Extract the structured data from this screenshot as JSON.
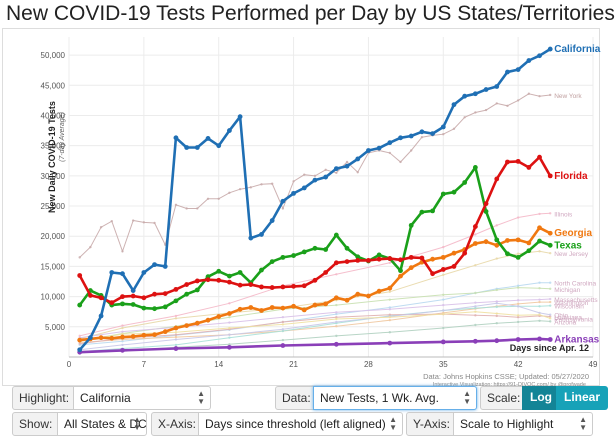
{
  "page": {
    "title": "New COVID-19 Tests Performed per Day by US States/Territories"
  },
  "source": {
    "line1": "Data: Johns Hopkins CSSE; Updated: 05/27/2020",
    "line2": "Interactive Visualization: https://91-DIVOC.com/ by @profwade_"
  },
  "controls": {
    "highlight_label": "Highlight:",
    "highlight_value": "California",
    "data_label": "Data:",
    "data_value": "New Tests, 1 Wk. Avg.",
    "scale_label": "Scale:",
    "scale_log": "Log",
    "scale_linear": "Linear",
    "scale_selected": "Linear",
    "show_label": "Show:",
    "show_value": "All States & DC",
    "xaxis_label": "X-Axis:",
    "xaxis_value": "Days since threshold (left aligned)",
    "yaxis_label": "Y-Axis:",
    "yaxis_value": "Scale to Highlight"
  },
  "colors": {
    "California": "#1f6fb4",
    "Florida": "#dd1111",
    "Georgia": "#f07810",
    "Texas": "#1aa01a",
    "Arkansas": "#8a3fb8",
    "NewYork": "#c8aaaa",
    "accent": "#17a2b8"
  },
  "chart_data": {
    "type": "line",
    "ylabel": "New Daily COVID-19 Tests",
    "ylabel_sub": "(7-day Average)",
    "xlabel": "Days since Apr. 12",
    "xlim": [
      0,
      49
    ],
    "ylim": [
      0,
      53000
    ],
    "xticks": [
      0,
      7,
      14,
      21,
      28,
      35,
      42,
      49
    ],
    "yticks": [
      5000,
      10000,
      15000,
      20000,
      25000,
      30000,
      35000,
      40000,
      45000,
      50000
    ],
    "ytick_labels": [
      "5,000",
      "10,000",
      "15,000",
      "20,000",
      "25,000",
      "30,000",
      "35,000",
      "40,000",
      "45,000",
      "50,000"
    ],
    "series": [
      {
        "name": "California",
        "emphasis": true,
        "x": [
          1,
          2,
          3,
          4,
          5,
          6,
          7,
          8,
          9,
          10,
          11,
          12,
          13,
          14,
          15,
          16,
          17,
          18,
          19,
          20,
          21,
          22,
          23,
          24,
          25,
          26,
          27,
          28,
          29,
          30,
          31,
          32,
          33,
          34,
          35,
          36,
          37,
          38,
          39,
          40,
          41,
          42,
          43,
          44,
          45
        ],
        "y": [
          1200,
          3200,
          6800,
          14000,
          13800,
          11000,
          14000,
          15300,
          15000,
          36300,
          34700,
          34700,
          36200,
          35000,
          37500,
          39800,
          19700,
          20300,
          22600,
          25800,
          27100,
          28000,
          29300,
          29800,
          31200,
          31600,
          32800,
          34200,
          34600,
          35500,
          36300,
          36600,
          37300,
          37000,
          38100,
          41800,
          43200,
          43600,
          44300,
          44800,
          47200,
          47600,
          49100,
          49900,
          51000
        ]
      },
      {
        "name": "Florida",
        "emphasis": true,
        "x": [
          1,
          2,
          3,
          4,
          5,
          6,
          7,
          8,
          9,
          10,
          11,
          12,
          13,
          14,
          15,
          16,
          17,
          18,
          19,
          20,
          21,
          22,
          23,
          24,
          25,
          26,
          27,
          28,
          29,
          30,
          31,
          32,
          33,
          34,
          35,
          36,
          37,
          38,
          39,
          40,
          41,
          42,
          43,
          44,
          45
        ],
        "y": [
          13500,
          10200,
          9800,
          9000,
          10000,
          10100,
          9800,
          10400,
          10500,
          11200,
          12000,
          12600,
          12800,
          12700,
          12400,
          11900,
          12000,
          11600,
          11500,
          11600,
          11700,
          11800,
          12700,
          14000,
          15600,
          15800,
          16000,
          16000,
          16200,
          16300,
          16100,
          16500,
          16400,
          13800,
          14500,
          15000,
          17200,
          21600,
          25400,
          29500,
          32300,
          32400,
          31400,
          33100,
          30000
        ]
      },
      {
        "name": "Georgia",
        "emphasis": true,
        "x": [
          1,
          2,
          3,
          4,
          5,
          6,
          7,
          8,
          9,
          10,
          11,
          12,
          13,
          14,
          15,
          16,
          17,
          18,
          19,
          20,
          21,
          22,
          23,
          24,
          25,
          26,
          27,
          28,
          29,
          30,
          31,
          32,
          33,
          34,
          35,
          36,
          37,
          38,
          39,
          40,
          41,
          42,
          43,
          44,
          45
        ],
        "y": [
          2800,
          3000,
          3200,
          3100,
          3300,
          3400,
          3600,
          3700,
          4200,
          4800,
          5200,
          5600,
          6100,
          6700,
          7200,
          7900,
          8200,
          7700,
          8200,
          8100,
          8400,
          7800,
          8600,
          8800,
          9800,
          9400,
          10400,
          10100,
          10900,
          11400,
          13400,
          14800,
          15700,
          16200,
          16500,
          17200,
          17800,
          18800,
          19100,
          18500,
          19300,
          19400,
          18900,
          21400,
          20500
        ]
      },
      {
        "name": "Texas",
        "emphasis": true,
        "x": [
          1,
          2,
          3,
          4,
          5,
          6,
          7,
          8,
          9,
          10,
          11,
          12,
          13,
          14,
          15,
          16,
          17,
          18,
          19,
          20,
          21,
          22,
          23,
          24,
          25,
          26,
          27,
          28,
          29,
          30,
          31,
          32,
          33,
          34,
          35,
          36,
          37,
          38,
          39,
          40,
          41,
          42,
          43,
          44,
          45
        ],
        "y": [
          8600,
          11000,
          10200,
          8600,
          8800,
          8700,
          8100,
          8000,
          8300,
          9300,
          10400,
          11100,
          13300,
          14200,
          13400,
          14000,
          12300,
          14400,
          15800,
          16500,
          16800,
          17400,
          18000,
          17800,
          20200,
          18000,
          16600,
          15900,
          16900,
          16300,
          14300,
          21800,
          24000,
          24200,
          27000,
          27300,
          28900,
          31400,
          24100,
          19400,
          17100,
          16500,
          17600,
          19200,
          18500
        ]
      },
      {
        "name": "Arkansas",
        "emphasis": true,
        "x": [
          1,
          5,
          10,
          15,
          20,
          25,
          30,
          35,
          38,
          40,
          42,
          44,
          45
        ],
        "y": [
          800,
          1100,
          1400,
          1600,
          1900,
          2100,
          2300,
          2500,
          2600,
          2700,
          2900,
          3000,
          2900
        ]
      },
      {
        "name": "New York",
        "emphasis": false,
        "x": [
          1,
          2,
          3,
          4,
          5,
          6,
          7,
          8,
          9,
          10,
          11,
          12,
          13,
          14,
          15,
          16,
          17,
          18,
          19,
          20,
          21,
          22,
          23,
          24,
          25,
          26,
          27,
          28,
          29,
          30,
          31,
          32,
          33,
          34,
          35,
          36,
          37,
          38,
          39,
          40,
          41,
          42,
          43,
          44,
          45
        ],
        "y": [
          16500,
          18200,
          21500,
          22500,
          17500,
          22600,
          22300,
          22200,
          18600,
          25200,
          24600,
          24600,
          26200,
          26200,
          27200,
          27800,
          28100,
          28600,
          28700,
          24600,
          29100,
          30200,
          30000,
          31000,
          30500,
          32300,
          30600,
          33800,
          34200,
          33800,
          32300,
          34200,
          36400,
          36700,
          36900,
          37800,
          39700,
          40500,
          40900,
          42000,
          41600,
          42500,
          43600,
          43200,
          43400
        ]
      },
      {
        "name": "Illinois",
        "emphasis": false,
        "x": [
          1,
          5,
          10,
          15,
          20,
          25,
          30,
          35,
          38,
          40,
          42,
          44,
          45
        ],
        "y": [
          3500,
          5200,
          6800,
          8900,
          11800,
          13700,
          15600,
          18200,
          20300,
          21800,
          23100,
          23700,
          23800
        ]
      },
      {
        "name": "New Jersey",
        "emphasis": false,
        "x": [
          1,
          5,
          10,
          15,
          20,
          25,
          30,
          35,
          38,
          40,
          42,
          44,
          45
        ],
        "y": [
          3000,
          4800,
          6400,
          7300,
          8100,
          9400,
          10800,
          13600,
          15200,
          16300,
          17100,
          17500,
          17200
        ]
      },
      {
        "name": "North Carolina",
        "emphasis": false,
        "x": [
          1,
          5,
          10,
          15,
          20,
          25,
          30,
          35,
          38,
          40,
          42,
          44,
          45
        ],
        "y": [
          2000,
          2600,
          3600,
          4500,
          5800,
          7100,
          8200,
          9500,
          10600,
          11300,
          11800,
          12300,
          12300
        ]
      },
      {
        "name": "Michigan",
        "emphasis": false,
        "x": [
          1,
          5,
          10,
          15,
          20,
          25,
          30,
          35,
          38,
          40,
          42,
          44,
          45
        ],
        "y": [
          2600,
          3900,
          5100,
          6600,
          7900,
          8600,
          9500,
          10300,
          10600,
          11100,
          11500,
          11400,
          11300
        ]
      },
      {
        "name": "Massachusetts",
        "emphasis": false,
        "x": [
          1,
          5,
          10,
          15,
          20,
          25,
          30,
          35,
          38,
          40,
          42,
          44,
          45
        ],
        "y": [
          3200,
          4200,
          4900,
          5700,
          6600,
          7400,
          7900,
          8600,
          9000,
          9200,
          9400,
          9500,
          9600
        ]
      },
      {
        "name": "Washington",
        "emphasis": false,
        "x": [
          1,
          5,
          10,
          15,
          20,
          25,
          30,
          35,
          38,
          40,
          42,
          44,
          45
        ],
        "y": [
          2400,
          2900,
          3300,
          3700,
          4300,
          5100,
          6100,
          7300,
          8000,
          8400,
          8800,
          9100,
          9100
        ]
      },
      {
        "name": "Wisconsin",
        "emphasis": false,
        "x": [
          1,
          5,
          10,
          15,
          20,
          25,
          30,
          35,
          38,
          40,
          42,
          44,
          45
        ],
        "y": [
          900,
          1400,
          2000,
          3200,
          4300,
          5600,
          6800,
          7700,
          8100,
          8300,
          8400,
          8400,
          8500
        ]
      },
      {
        "name": "Louisiana",
        "emphasis": false,
        "x": [
          1,
          5,
          10,
          15,
          20,
          25,
          30,
          35,
          38,
          40,
          42,
          44,
          45
        ],
        "y": [
          2200,
          3100,
          3700,
          4600,
          5800,
          6600,
          7000,
          7100,
          6900,
          6800,
          6600,
          6800,
          6700
        ]
      },
      {
        "name": "Ohio",
        "emphasis": false,
        "x": [
          1,
          5,
          10,
          15,
          20,
          25,
          30,
          35,
          38,
          40,
          42,
          44,
          45
        ],
        "y": [
          1200,
          2000,
          2900,
          3700,
          4600,
          5800,
          6700,
          7700,
          8400,
          8900,
          8400,
          7300,
          7000
        ]
      },
      {
        "name": "Pennsylvania",
        "emphasis": false,
        "x": [
          1,
          5,
          10,
          15,
          20,
          25,
          30,
          35,
          38,
          40,
          42,
          44,
          45
        ],
        "y": [
          2600,
          3800,
          4100,
          4800,
          5400,
          6300,
          6600,
          7100,
          7500,
          7200,
          6900,
          7000,
          6400
        ]
      },
      {
        "name": "Arizona",
        "emphasis": false,
        "x": [
          1,
          5,
          10,
          15,
          20,
          25,
          30,
          35,
          38,
          40,
          42,
          44,
          45
        ],
        "y": [
          700,
          1000,
          1600,
          2100,
          2800,
          3500,
          4100,
          4800,
          5300,
          5600,
          5800,
          6000,
          5900
        ]
      }
    ],
    "labels": [
      {
        "series": "California",
        "text": "California",
        "x": 45,
        "y": 51000
      },
      {
        "series": "New York",
        "text": "New York",
        "x": 45,
        "y": 43400
      },
      {
        "series": "Florida",
        "text": "Florida",
        "x": 45,
        "y": 30000
      },
      {
        "series": "Illinois",
        "text": "Illinois",
        "x": 45,
        "y": 23800
      },
      {
        "series": "Georgia",
        "text": "Georgia",
        "x": 45,
        "y": 20500
      },
      {
        "series": "Texas",
        "text": "Texas",
        "x": 45,
        "y": 18500
      },
      {
        "series": "New Jersey",
        "text": "New Jersey",
        "x": 45,
        "y": 17200
      },
      {
        "series": "North Carolina",
        "text": "North Carolina",
        "x": 45,
        "y": 12300
      },
      {
        "series": "Michigan",
        "text": "Michigan",
        "x": 45,
        "y": 11300
      },
      {
        "series": "Massachusetts",
        "text": "Massachusetts",
        "x": 45,
        "y": 9600
      },
      {
        "series": "Washington",
        "text": "Washington",
        "x": 45,
        "y": 9100
      },
      {
        "series": "Wisconsin",
        "text": "Wisconsin",
        "x": 45,
        "y": 8500
      },
      {
        "series": "Louisiana",
        "text": "Louisiana",
        "x": 45,
        "y": 6700
      },
      {
        "series": "Ohio",
        "text": "Ohio",
        "x": 45,
        "y": 7000
      },
      {
        "series": "Pennsylvania",
        "text": "Pennsylvania",
        "x": 45,
        "y": 6400
      },
      {
        "series": "Arizona",
        "text": "Arizona",
        "x": 45,
        "y": 5900
      },
      {
        "series": "Arkansas",
        "text": "Arkansas",
        "x": 45,
        "y": 2900
      }
    ]
  }
}
